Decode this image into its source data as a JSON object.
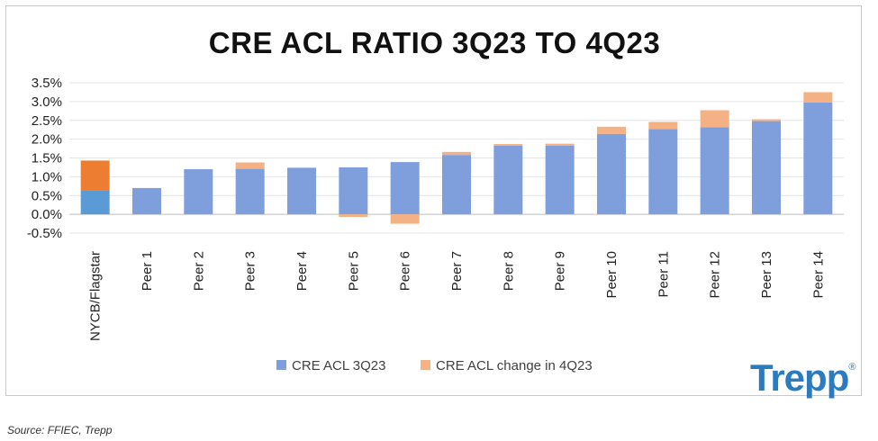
{
  "chart_data": {
    "type": "bar",
    "stacked": true,
    "title": "CRE ACL RATIO 3Q23 TO 4Q23",
    "categories": [
      "NYCB/Flagstar",
      "Peer 1",
      "Peer 2",
      "Peer 3",
      "Peer 4",
      "Peer 5",
      "Peer 6",
      "Peer 7",
      "Peer 8",
      "Peer 9",
      "Peer 10",
      "Peer 11",
      "Peer 12",
      "Peer 13",
      "Peer 14"
    ],
    "series": [
      {
        "name": "CRE ACL 3Q23",
        "color": "#7f9fdc",
        "highlight_color": "#5b9bd5",
        "values": [
          0.64,
          0.7,
          1.2,
          1.21,
          1.24,
          1.25,
          1.39,
          1.58,
          1.83,
          1.83,
          2.14,
          2.27,
          2.32,
          2.48,
          2.98
        ]
      },
      {
        "name": "CRE ACL change in 4Q23",
        "color": "#f4b183",
        "highlight_color": "#ed7d31",
        "values": [
          0.79,
          0.0,
          0.0,
          0.17,
          0.0,
          -0.07,
          -0.25,
          0.08,
          0.04,
          0.05,
          0.19,
          0.19,
          0.45,
          0.05,
          0.27
        ]
      }
    ],
    "highlight_category": "NYCB/Flagstar",
    "y_ticks": [
      "-0.5%",
      "0.0%",
      "0.5%",
      "1.0%",
      "1.5%",
      "2.0%",
      "2.5%",
      "3.0%",
      "3.5%"
    ],
    "ylim": [
      -0.5,
      3.5
    ],
    "grid": true,
    "legend_position": "bottom"
  },
  "branding": {
    "logo_text": "Trepp",
    "logo_mark": "®"
  },
  "source": "Source: FFIEC, Trepp"
}
